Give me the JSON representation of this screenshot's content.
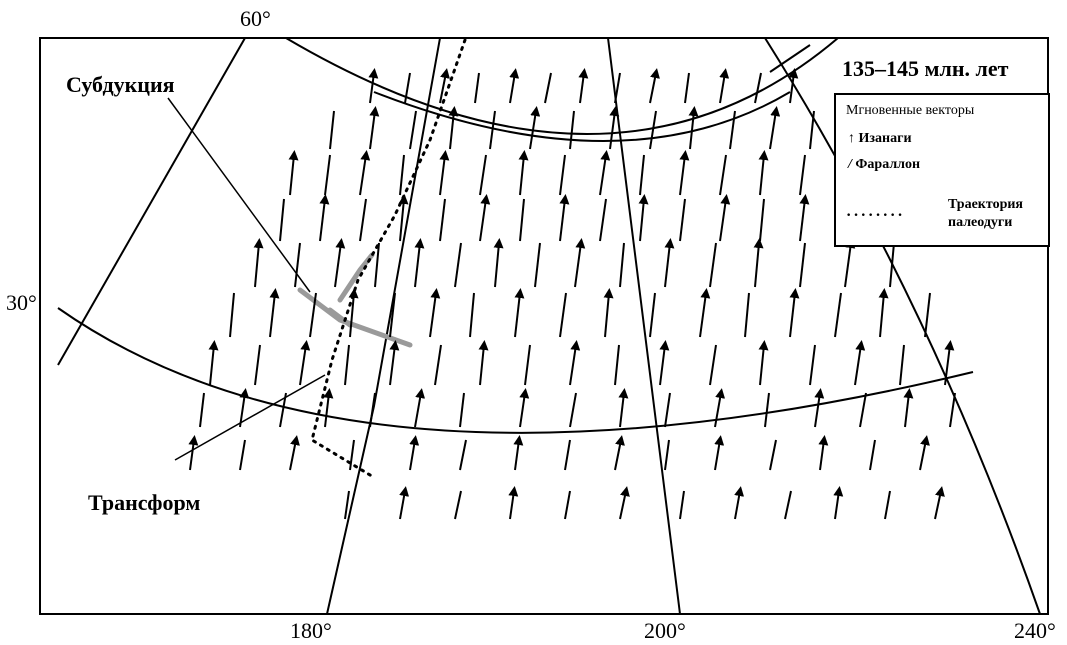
{
  "title": "135–145 млн. лет",
  "labels": {
    "subduction": "Субдукция",
    "transform": "Трансформ"
  },
  "axes": {
    "lat_ticks": [
      "60°",
      "30°"
    ],
    "lon_ticks": [
      "180°",
      "200°",
      "240°"
    ]
  },
  "legend": {
    "title": "Мгновенные векторы",
    "izanagi_symbol": "↑",
    "izanagi": "Изанаги",
    "farallon_symbol": "/",
    "farallon": "Фараллон",
    "trajectory_line1": "Траектория",
    "trajectory_line2": "палеодуги"
  },
  "colors": {
    "ink": "#000000",
    "shaded_band": "#9a9a9a",
    "background": "#ffffff"
  }
}
